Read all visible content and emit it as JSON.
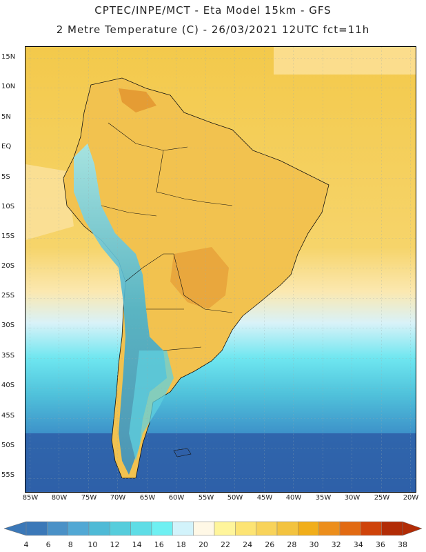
{
  "header": {
    "line1": "CPTEC/INPE/MCT -  Eta Model 15km - GFS",
    "line2": "2 Metre Temperature (C) - 26/03/2021 12UTC fct=11h"
  },
  "axes": {
    "lat_labels": [
      "15N",
      "10N",
      "5N",
      "EQ",
      "5S",
      "10S",
      "15S",
      "20S",
      "25S",
      "30S",
      "35S",
      "40S",
      "45S",
      "50S",
      "55S"
    ],
    "lon_labels": [
      "85W",
      "80W",
      "75W",
      "70W",
      "65W",
      "60W",
      "55W",
      "50W",
      "45W",
      "40W",
      "35W",
      "30W",
      "25W",
      "20W"
    ]
  },
  "colorbar": {
    "labels": [
      "4",
      "6",
      "8",
      "10",
      "12",
      "14",
      "16",
      "18",
      "20",
      "22",
      "24",
      "26",
      "28",
      "30",
      "32",
      "34",
      "36",
      "38"
    ],
    "colors": [
      "#3b78b8",
      "#4a91c7",
      "#52a8d4",
      "#4fbad6",
      "#56cddc",
      "#5fdde6",
      "#6ff0f2",
      "#d2f3fb",
      "#fff8e6",
      "#fff59b",
      "#fde473",
      "#f8d35a",
      "#f3c33f",
      "#f1ae1a",
      "#ec8e1c",
      "#e26a12",
      "#cf430a",
      "#b22c06"
    ]
  },
  "colors": {
    "ocean_cold": "#2f5fa6",
    "ocean_cool": "#3a7cc0",
    "ocean_mid": "#52b6d8",
    "ocean_warm": "#f3d060",
    "land_warm": "#f2c85a",
    "land_hot": "#e9a83a",
    "andes": "#4db8cf"
  }
}
